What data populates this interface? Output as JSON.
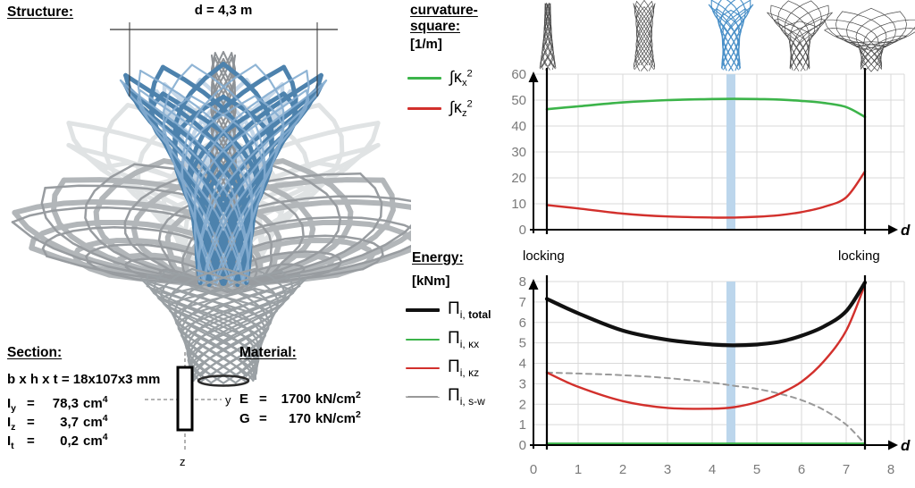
{
  "panel_left": {
    "structure_heading": "Structure:",
    "dimension_label": "d = 4,3 m",
    "section": {
      "heading": "Section:",
      "bxhxt_row": "b x h x t = 18x107x3 mm",
      "rows": [
        {
          "sym": "I",
          "sub": "y",
          "eq": "=",
          "value": "78,3",
          "unit": "cm",
          "sup": "4"
        },
        {
          "sym": "I",
          "sub": "z",
          "eq": "=",
          "value": "3,7",
          "unit": "cm",
          "sup": "4"
        },
        {
          "sym": "I",
          "sub": "t",
          "eq": "=",
          "value": "0,2",
          "unit": "cm",
          "sup": "4"
        }
      ],
      "axis_y": "y",
      "axis_z": "z"
    },
    "material": {
      "heading": "Material:",
      "rows": [
        {
          "sym": "E",
          "eq": "=",
          "value": "1700",
          "unit": "kN/cm",
          "sup": "2"
        },
        {
          "sym": "G",
          "eq": "=",
          "value": "170",
          "unit": "kN/cm",
          "sup": "2"
        }
      ]
    }
  },
  "structure_render": {
    "primary_blue": "#4d82ad",
    "light_blue": "#85add1",
    "ghost_blue": "#bdd2e6",
    "gray": "#b2b6b9",
    "dark_gray": "#989ca0",
    "ghost_gray": "#dde0e2",
    "column_gray": "#8e9296",
    "funnel_gray": "#9aa0a4"
  },
  "structure_previews": [
    {
      "shape": "narrow-tower",
      "highlighted": false,
      "color": "#4a4a4a"
    },
    {
      "shape": "slim-hourglass",
      "highlighted": false,
      "color": "#4a4a4a"
    },
    {
      "shape": "trumpet-d-4-3",
      "highlighted": true,
      "color": "#4a90c8"
    },
    {
      "shape": "wide-funnel",
      "highlighted": false,
      "color": "#4a4a4a"
    },
    {
      "shape": "flat-dish",
      "highlighted": false,
      "color": "#4a4a4a"
    }
  ],
  "locking_labels": {
    "left": "locking",
    "right": "locking"
  },
  "chart_data": [
    {
      "id": "curvature",
      "type": "line",
      "title_line1": "curvature-",
      "title_line2": "square:",
      "unit": "[1/m]",
      "x_label": "d",
      "x_range": [
        0,
        8
      ],
      "y_range": [
        0,
        60
      ],
      "y_ticks": [
        0,
        10,
        20,
        30,
        40,
        50,
        60
      ],
      "x_gridline_step": 1,
      "grid": true,
      "legend_position": "left",
      "locking_lines_x": [
        0.3,
        7.42
      ],
      "highlight_band": {
        "x_center": 4.42,
        "x_width": 0.2,
        "color": "#bcd6ec"
      },
      "series": [
        {
          "name": "∫κx²",
          "label_sym": "∫κ",
          "label_sub": "x",
          "label_sup": "2",
          "color": "#3cb44a",
          "width": 2.6,
          "dash": null,
          "x": [
            0.3,
            1,
            2,
            3,
            4,
            4.5,
            5,
            5.5,
            6,
            6.5,
            7,
            7.42
          ],
          "y": [
            46.5,
            47.6,
            49.1,
            50.0,
            50.4,
            50.5,
            50.4,
            50.2,
            49.7,
            48.9,
            47.3,
            43.5
          ]
        },
        {
          "name": "∫κz²",
          "label_sym": "∫κ",
          "label_sub": "z",
          "label_sup": "2",
          "color": "#d2302c",
          "width": 2.4,
          "dash": null,
          "x": [
            0.3,
            1,
            2,
            3,
            4,
            4.5,
            5,
            5.5,
            6,
            6.5,
            7,
            7.42
          ],
          "y": [
            9.5,
            8.2,
            6.2,
            5.1,
            4.7,
            4.7,
            5.0,
            5.6,
            6.8,
            8.8,
            12.5,
            22.5
          ]
        }
      ]
    },
    {
      "id": "energy",
      "type": "line",
      "title_line1": "Energy:",
      "unit": "[kNm]",
      "x_label": "d",
      "x_range": [
        0,
        8
      ],
      "y_range": [
        0,
        8
      ],
      "y_ticks": [
        0,
        1,
        2,
        3,
        4,
        5,
        6,
        7,
        8
      ],
      "x_ticks": [
        0,
        1,
        2,
        3,
        4,
        5,
        6,
        7,
        8
      ],
      "x_gridline_step": 1,
      "grid": true,
      "legend_position": "left",
      "locking_lines_x": [
        0.3,
        7.42
      ],
      "highlight_band": {
        "x_center": 4.42,
        "x_width": 0.2,
        "color": "#bcd6ec"
      },
      "series": [
        {
          "name": "Πi,s-w",
          "label_sym": "Π",
          "label_sub": "i, s-w",
          "color": "#999999",
          "width": 2,
          "dash": "6 5",
          "style": "dashed",
          "x": [
            0.3,
            1,
            2,
            3,
            4,
            4.5,
            5,
            5.5,
            6,
            6.5,
            7,
            7.42
          ],
          "y": [
            3.55,
            3.5,
            3.42,
            3.28,
            3.05,
            2.9,
            2.75,
            2.52,
            2.2,
            1.72,
            1.0,
            0.05
          ]
        },
        {
          "name": "Πi,κz",
          "label_sym": "Π",
          "label_sub": "i, κz",
          "color": "#d2302c",
          "width": 2.4,
          "dash": null,
          "x": [
            0.3,
            1,
            2,
            3,
            4,
            4.5,
            5,
            5.5,
            6,
            6.5,
            7,
            7.42
          ],
          "y": [
            3.55,
            2.85,
            2.15,
            1.82,
            1.78,
            1.86,
            2.1,
            2.5,
            3.1,
            4.1,
            5.6,
            7.85
          ]
        },
        {
          "name": "Πi,total",
          "label_sym": "Π",
          "label_sub": "i, ",
          "label_sub_bold": "total",
          "color": "#111111",
          "width": 4.2,
          "dash": null,
          "x": [
            0.3,
            1,
            2,
            3,
            4,
            4.5,
            5,
            5.5,
            6,
            6.5,
            7,
            7.42
          ],
          "y": [
            7.15,
            6.45,
            5.6,
            5.15,
            4.92,
            4.88,
            4.92,
            5.05,
            5.35,
            5.8,
            6.55,
            7.95
          ]
        },
        {
          "name": "Πi,κx",
          "label_sym": "Π",
          "label_sub": "i, κx",
          "color": "#3cb44a",
          "width": 2.6,
          "dash": null,
          "x": [
            0.3,
            7.42
          ],
          "y": [
            0.07,
            0.07
          ]
        }
      ]
    }
  ]
}
